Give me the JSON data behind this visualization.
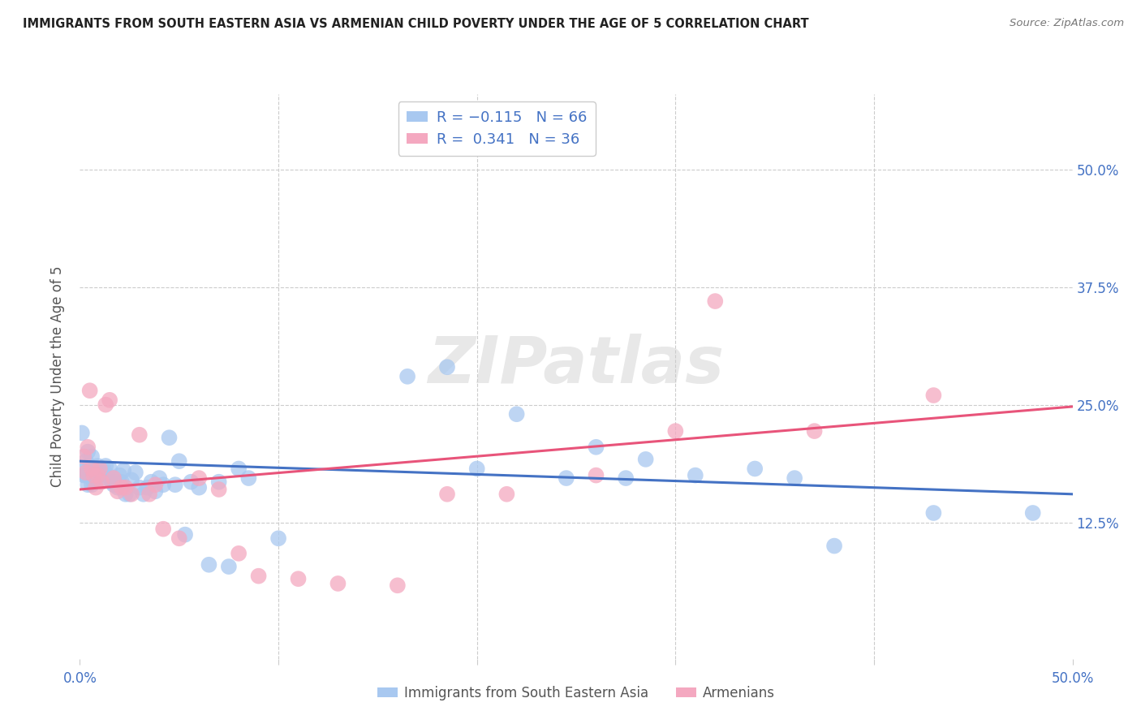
{
  "title": "IMMIGRANTS FROM SOUTH EASTERN ASIA VS ARMENIAN CHILD POVERTY UNDER THE AGE OF 5 CORRELATION CHART",
  "source_text": "Source: ZipAtlas.com",
  "ylabel": "Child Poverty Under the Age of 5",
  "xlim": [
    0.0,
    0.5
  ],
  "ylim": [
    -0.02,
    0.58
  ],
  "right_ytick_labels": [
    "12.5%",
    "25.0%",
    "37.5%",
    "50.0%"
  ],
  "right_ytick_positions": [
    0.125,
    0.25,
    0.375,
    0.5
  ],
  "blue_color": "#A8C8F0",
  "pink_color": "#F4A8C0",
  "blue_line_color": "#4472C4",
  "pink_line_color": "#E8547A",
  "legend_series_1": "Immigrants from South Eastern Asia",
  "legend_series_2": "Armenians",
  "watermark": "ZIPatlas",
  "blue_scatter_x": [
    0.001,
    0.002,
    0.002,
    0.003,
    0.003,
    0.004,
    0.004,
    0.005,
    0.005,
    0.006,
    0.006,
    0.007,
    0.007,
    0.008,
    0.008,
    0.009,
    0.01,
    0.011,
    0.012,
    0.013,
    0.014,
    0.015,
    0.016,
    0.017,
    0.018,
    0.019,
    0.02,
    0.021,
    0.022,
    0.023,
    0.025,
    0.026,
    0.028,
    0.03,
    0.032,
    0.034,
    0.036,
    0.038,
    0.04,
    0.042,
    0.045,
    0.048,
    0.05,
    0.053,
    0.056,
    0.06,
    0.065,
    0.07,
    0.075,
    0.08,
    0.085,
    0.1,
    0.165,
    0.185,
    0.2,
    0.22,
    0.245,
    0.26,
    0.275,
    0.285,
    0.31,
    0.34,
    0.36,
    0.38,
    0.43,
    0.48
  ],
  "blue_scatter_y": [
    0.22,
    0.18,
    0.175,
    0.19,
    0.175,
    0.2,
    0.165,
    0.185,
    0.175,
    0.195,
    0.165,
    0.182,
    0.168,
    0.182,
    0.17,
    0.185,
    0.178,
    0.172,
    0.182,
    0.185,
    0.175,
    0.182,
    0.168,
    0.165,
    0.168,
    0.162,
    0.175,
    0.168,
    0.18,
    0.155,
    0.155,
    0.17,
    0.178,
    0.162,
    0.155,
    0.162,
    0.168,
    0.158,
    0.172,
    0.165,
    0.215,
    0.165,
    0.19,
    0.112,
    0.168,
    0.162,
    0.08,
    0.168,
    0.078,
    0.182,
    0.172,
    0.108,
    0.28,
    0.29,
    0.182,
    0.24,
    0.172,
    0.205,
    0.172,
    0.192,
    0.175,
    0.182,
    0.172,
    0.1,
    0.135,
    0.135
  ],
  "pink_scatter_x": [
    0.002,
    0.003,
    0.004,
    0.005,
    0.006,
    0.007,
    0.008,
    0.009,
    0.01,
    0.011,
    0.013,
    0.015,
    0.017,
    0.019,
    0.021,
    0.023,
    0.026,
    0.03,
    0.035,
    0.038,
    0.042,
    0.05,
    0.06,
    0.07,
    0.08,
    0.09,
    0.11,
    0.13,
    0.16,
    0.185,
    0.215,
    0.26,
    0.3,
    0.32,
    0.37,
    0.43
  ],
  "pink_scatter_y": [
    0.195,
    0.178,
    0.205,
    0.265,
    0.182,
    0.175,
    0.162,
    0.175,
    0.182,
    0.168,
    0.25,
    0.255,
    0.172,
    0.158,
    0.162,
    0.162,
    0.155,
    0.218,
    0.155,
    0.165,
    0.118,
    0.108,
    0.172,
    0.16,
    0.092,
    0.068,
    0.065,
    0.06,
    0.058,
    0.155,
    0.155,
    0.175,
    0.222,
    0.36,
    0.222,
    0.26
  ],
  "blue_trend_x": [
    0.0,
    0.5
  ],
  "blue_trend_y": [
    0.19,
    0.155
  ],
  "pink_trend_x": [
    0.0,
    0.5
  ],
  "pink_trend_y": [
    0.16,
    0.248
  ]
}
